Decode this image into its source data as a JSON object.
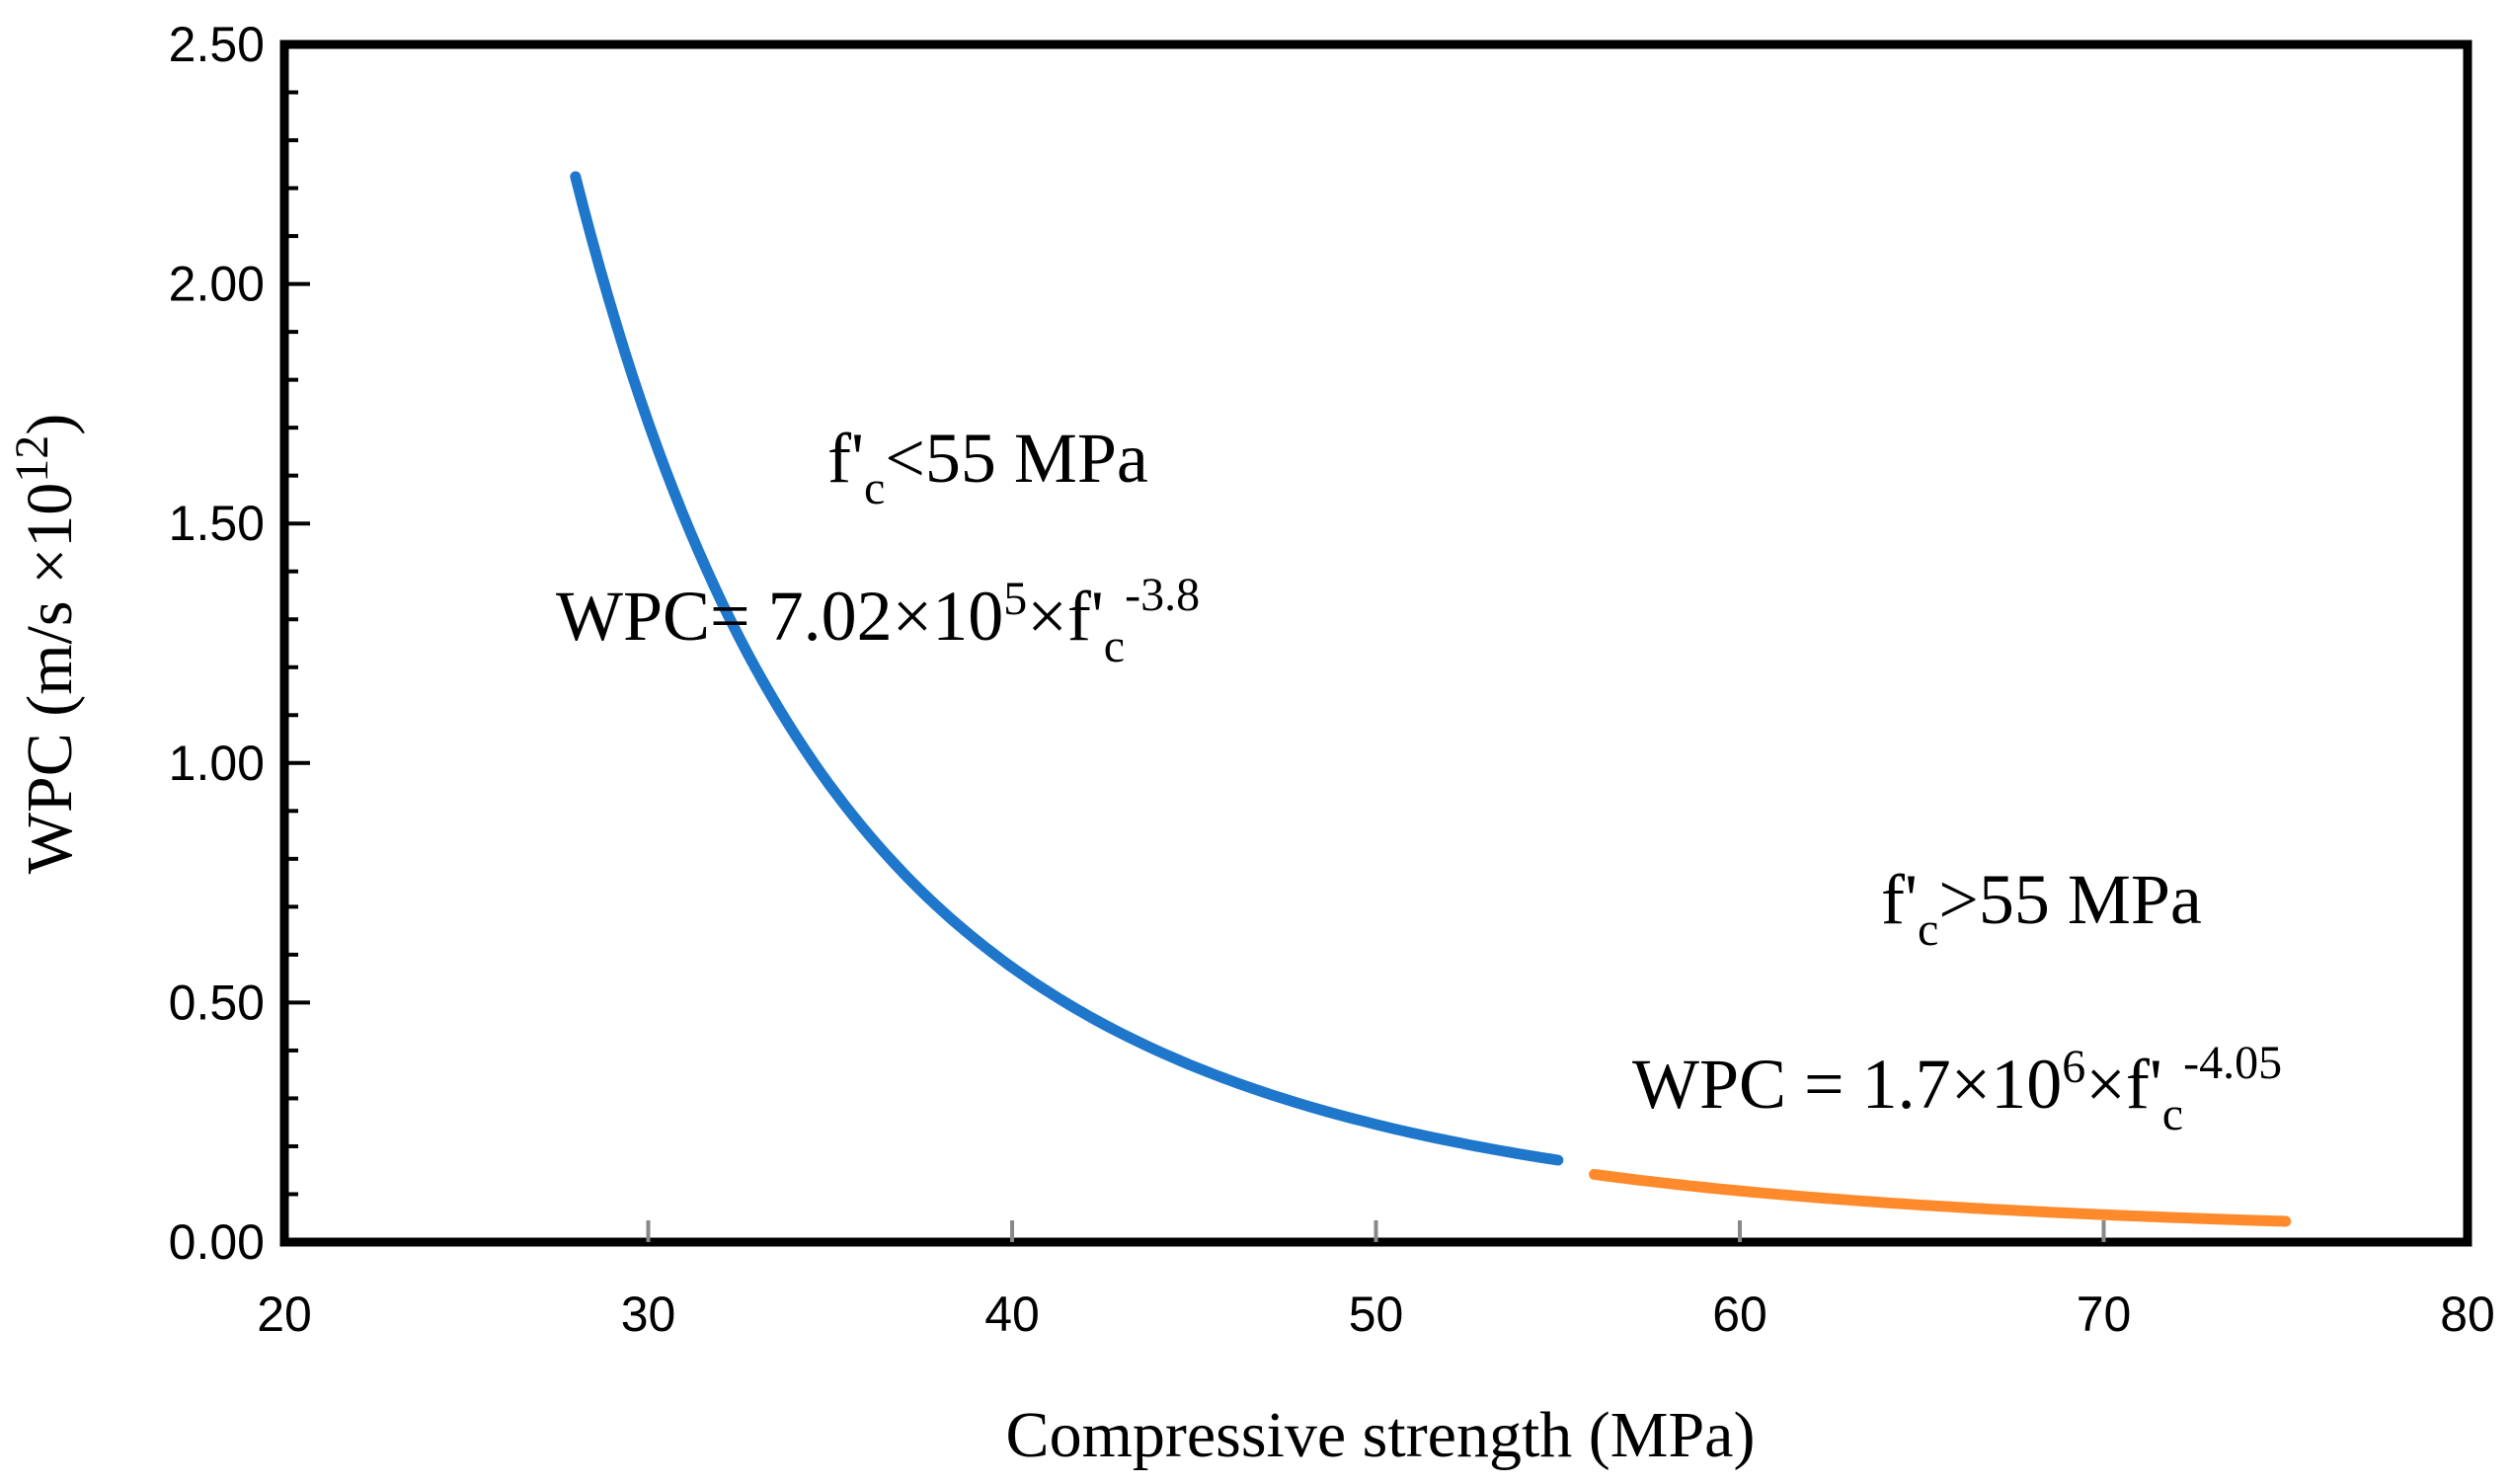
{
  "chart_data": {
    "type": "line",
    "title": "",
    "xlabel": "Compressive strength (MPa)",
    "ylabel": "WPC (m/s ×10",
    "ylabel_sup": "12",
    "ylabel_close": ")",
    "xlim": [
      20,
      80
    ],
    "ylim": [
      0,
      2.5
    ],
    "x_ticks": [
      20,
      30,
      40,
      50,
      60,
      70,
      80
    ],
    "x_tick_labels": [
      "20",
      "30",
      "40",
      "50",
      "60",
      "70",
      "80"
    ],
    "y_ticks": [
      0,
      0.5,
      1.0,
      1.5,
      2.0,
      2.5
    ],
    "y_tick_labels": [
      "0.00",
      "0.50",
      "1.00",
      "1.50",
      "2.00",
      "2.50"
    ],
    "grid": false,
    "series": [
      {
        "name": "f'c<55 MPa",
        "color": "#1F77CC",
        "coefficient": 702000,
        "exponent": -3.8,
        "x_range": [
          28,
          55
        ],
        "x": [
          28,
          30,
          32,
          34,
          36,
          38,
          40,
          42,
          44,
          46,
          48,
          50,
          52,
          54,
          55
        ],
        "y": [
          2.23,
          1.71,
          1.33,
          1.06,
          0.85,
          0.69,
          0.57,
          0.47,
          0.4,
          0.34,
          0.29,
          0.25,
          0.22,
          0.19,
          0.18
        ]
      },
      {
        "name": "f'c>55 MPa",
        "color": "#FF8A2B",
        "coefficient": 1700000,
        "exponent": -4.05,
        "x_range": [
          56,
          75
        ],
        "x": [
          56,
          58,
          60,
          62,
          64,
          66,
          68,
          70,
          72,
          74,
          75
        ],
        "y": [
          0.14,
          0.12,
          0.11,
          0.09,
          0.08,
          0.07,
          0.06,
          0.06,
          0.05,
          0.05,
          0.04
        ]
      }
    ],
    "annotations": {
      "lower": {
        "condition_prefix": "f'",
        "condition_sub": "c",
        "condition_suffix": "<55 MPa",
        "eq_prefix": "WPC= 7.02×10",
        "eq_sup1": "5",
        "eq_mid": "×f'",
        "eq_sub": "c",
        "eq_sup2": "-3.8"
      },
      "upper": {
        "condition_prefix": "f'",
        "condition_sub": "c",
        "condition_suffix": ">55 MPa",
        "eq_prefix": "WPC = 1.7×10",
        "eq_sup1": "6",
        "eq_mid": "×f'",
        "eq_sub": "c",
        "eq_sup2": "-4.05"
      }
    }
  }
}
